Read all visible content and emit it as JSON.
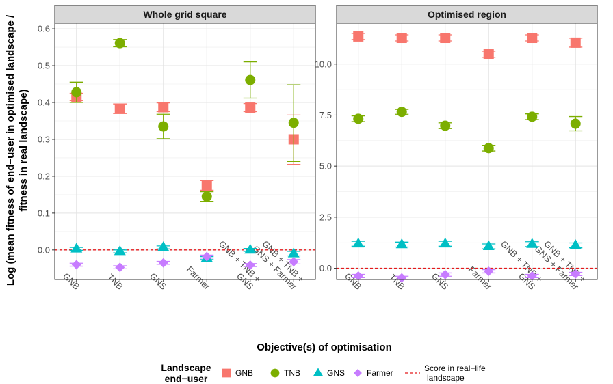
{
  "chart_data": {
    "type": "scatter",
    "xlabel": "Objective(s) of optimisation",
    "ylabel_lines": [
      "Log (mean fitness of end−user in optimised landscape /",
      "fitness in real landscape)"
    ],
    "categories": [
      [
        "GNB"
      ],
      [
        "TNB"
      ],
      [
        "GNS"
      ],
      [
        "Farmer"
      ],
      [
        "GNB + TNB +",
        "GNS"
      ],
      [
        "GNB + TNB +",
        "GNS + Farmer"
      ]
    ],
    "series_meta": [
      {
        "name": "GNB",
        "color": "#F8766D",
        "shape": "square"
      },
      {
        "name": "TNB",
        "color": "#7CAE00",
        "shape": "circle"
      },
      {
        "name": "GNS",
        "color": "#00BFC4",
        "shape": "triangle"
      },
      {
        "name": "Farmer",
        "color": "#C77CFF",
        "shape": "diamond"
      }
    ],
    "reference_line": {
      "label_lines": [
        "Score in real−life",
        "landscape"
      ],
      "value": 0,
      "color": "#E41A1C"
    },
    "legend": {
      "title_lines": [
        "Landscape",
        "end−user"
      ],
      "position": "bottom"
    },
    "panels": [
      {
        "title": "Whole grid square",
        "ylim": [
          -0.08,
          0.615
        ],
        "yticks": [
          0.0,
          0.1,
          0.2,
          0.3,
          0.4,
          0.5,
          0.6
        ],
        "ytick_labels": [
          "0.0",
          "0.1",
          "0.2",
          "0.3",
          "0.4",
          "0.5",
          "0.6"
        ],
        "series": [
          {
            "name": "GNB",
            "values": [
              0.415,
              0.383,
              0.387,
              0.175,
              0.386,
              0.3
            ],
            "err_low": [
              0.405,
              0.37,
              0.375,
              0.162,
              0.375,
              0.232
            ],
            "err_high": [
              0.425,
              0.396,
              0.399,
              0.188,
              0.397,
              0.366
            ]
          },
          {
            "name": "TNB",
            "values": [
              0.428,
              0.561,
              0.335,
              0.145,
              0.461,
              0.345
            ],
            "err_low": [
              0.4,
              0.551,
              0.302,
              0.132,
              0.412,
              0.24
            ],
            "err_high": [
              0.455,
              0.571,
              0.368,
              0.158,
              0.51,
              0.448
            ]
          },
          {
            "name": "GNS",
            "values": [
              0.003,
              -0.004,
              0.007,
              -0.022,
              0.0,
              -0.01
            ],
            "err_low": [
              -0.001,
              -0.008,
              0.003,
              -0.026,
              -0.004,
              -0.016
            ],
            "err_high": [
              0.007,
              0.0,
              0.011,
              -0.018,
              0.004,
              -0.004
            ]
          },
          {
            "name": "Farmer",
            "values": [
              -0.04,
              -0.047,
              -0.035,
              -0.018,
              -0.041,
              -0.032
            ],
            "err_low": [
              -0.044,
              -0.051,
              -0.039,
              -0.022,
              -0.045,
              -0.038
            ],
            "err_high": [
              -0.036,
              -0.043,
              -0.031,
              -0.014,
              -0.037,
              -0.026
            ]
          }
        ]
      },
      {
        "title": "Optimised region",
        "ylim": [
          -0.55,
          12.0
        ],
        "yticks": [
          0.0,
          2.5,
          5.0,
          7.5,
          10.0
        ],
        "ytick_labels": [
          "0.0",
          "2.5",
          "5.0",
          "7.5",
          "10.0"
        ],
        "series": [
          {
            "name": "GNB",
            "values": [
              11.35,
              11.28,
              11.28,
              10.48,
              11.28,
              11.05
            ],
            "err_low": [
              11.2,
              11.13,
              11.13,
              10.33,
              11.13,
              10.83
            ],
            "err_high": [
              11.5,
              11.43,
              11.43,
              10.63,
              11.43,
              11.27
            ]
          },
          {
            "name": "TNB",
            "values": [
              7.32,
              7.66,
              6.98,
              5.88,
              7.42,
              7.08
            ],
            "err_low": [
              7.18,
              7.54,
              6.84,
              5.74,
              7.28,
              6.73
            ],
            "err_high": [
              7.46,
              7.78,
              7.12,
              6.02,
              7.56,
              7.43
            ]
          },
          {
            "name": "GNS",
            "values": [
              1.2,
              1.16,
              1.2,
              1.07,
              1.18,
              1.12
            ],
            "err_low": [
              1.08,
              1.04,
              1.08,
              0.95,
              1.06,
              1.0
            ],
            "err_high": [
              1.32,
              1.28,
              1.32,
              1.19,
              1.3,
              1.24
            ]
          },
          {
            "name": "Farmer",
            "values": [
              -0.38,
              -0.47,
              -0.31,
              -0.15,
              -0.38,
              -0.28
            ],
            "err_low": [
              -0.46,
              -0.55,
              -0.39,
              -0.23,
              -0.46,
              -0.36
            ],
            "err_high": [
              -0.3,
              -0.39,
              -0.23,
              -0.07,
              -0.3,
              -0.2
            ]
          }
        ]
      }
    ]
  }
}
